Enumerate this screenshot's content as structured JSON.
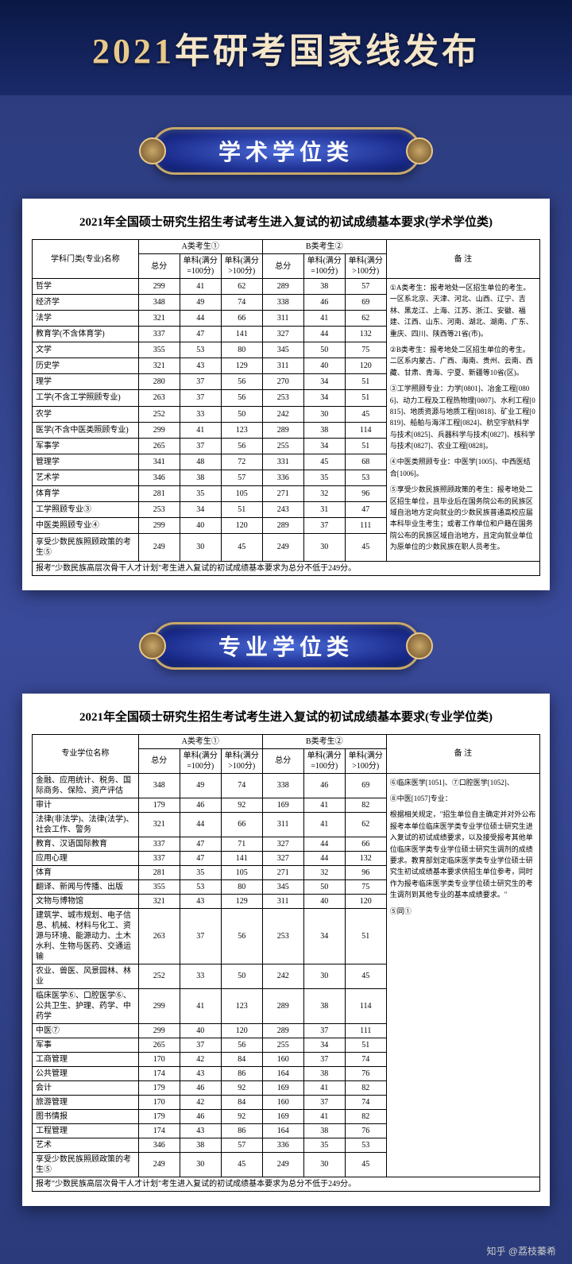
{
  "banner": {
    "year": "2021",
    "title_rest": "年研考国家线发布"
  },
  "sections": {
    "academic": {
      "badge": "学术学位类",
      "paper_title": "2021年全国硕士研究生招生考试考生进入复试的初试成绩基本要求(学术学位类)",
      "col_name_header": "学科门类(专业)名称",
      "group_a": "A类考生①",
      "group_b": "B类考生②",
      "notes_header": "备  注",
      "score_total": "总分",
      "score_100": "单科(满分=100分)",
      "score_gt100": "单科(满分>100分)",
      "rows": [
        {
          "name": "哲学",
          "a": [
            299,
            41,
            62
          ],
          "b": [
            289,
            38,
            57
          ]
        },
        {
          "name": "经济学",
          "a": [
            348,
            49,
            74
          ],
          "b": [
            338,
            46,
            69
          ]
        },
        {
          "name": "法学",
          "a": [
            321,
            44,
            66
          ],
          "b": [
            311,
            41,
            62
          ]
        },
        {
          "name": "教育学(不含体育学)",
          "a": [
            337,
            47,
            141
          ],
          "b": [
            327,
            44,
            132
          ]
        },
        {
          "name": "文学",
          "a": [
            355,
            53,
            80
          ],
          "b": [
            345,
            50,
            75
          ]
        },
        {
          "name": "历史学",
          "a": [
            321,
            43,
            129
          ],
          "b": [
            311,
            40,
            120
          ]
        },
        {
          "name": "理学",
          "a": [
            280,
            37,
            56
          ],
          "b": [
            270,
            34,
            51
          ]
        },
        {
          "name": "工学(不含工学照顾专业)",
          "a": [
            263,
            37,
            56
          ],
          "b": [
            253,
            34,
            51
          ]
        },
        {
          "name": "农学",
          "a": [
            252,
            33,
            50
          ],
          "b": [
            242,
            30,
            45
          ]
        },
        {
          "name": "医学(不含中医类照顾专业)",
          "a": [
            299,
            41,
            123
          ],
          "b": [
            289,
            38,
            114
          ]
        },
        {
          "name": "军事学",
          "a": [
            265,
            37,
            56
          ],
          "b": [
            255,
            34,
            51
          ]
        },
        {
          "name": "管理学",
          "a": [
            341,
            48,
            72
          ],
          "b": [
            331,
            45,
            68
          ]
        },
        {
          "name": "艺术学",
          "a": [
            346,
            38,
            57
          ],
          "b": [
            336,
            35,
            53
          ]
        },
        {
          "name": "体育学",
          "a": [
            281,
            35,
            105
          ],
          "b": [
            271,
            32,
            96
          ]
        },
        {
          "name": "工学照顾专业③",
          "a": [
            253,
            34,
            51
          ],
          "b": [
            243,
            31,
            47
          ]
        },
        {
          "name": "中医类照顾专业④",
          "a": [
            299,
            40,
            120
          ],
          "b": [
            289,
            37,
            111
          ]
        },
        {
          "name": "享受少数民族照顾政策的考生⑤",
          "a": [
            249,
            30,
            45
          ],
          "b": [
            249,
            30,
            45
          ]
        }
      ],
      "footnote": "报考\"少数民族高层次骨干人才计划\"考生进入复试的初试成绩基本要求为总分不低于249分。",
      "notes": [
        "①A类考生：报考地处一区招生单位的考生。一区系北京、天津、河北、山西、辽宁、吉林、黑龙江、上海、江苏、浙江、安徽、福建、江西、山东、河南、湖北、湖南、广东、重庆、四川、陕西等21省(市)。",
        "②B类考生：报考地处二区招生单位的考生。二区系内蒙古、广西、海南、贵州、云南、西藏、甘肃、青海、宁夏、新疆等10省(区)。",
        "③工学照顾专业：力学[0801]、冶金工程[0806]、动力工程及工程热物理[0807]、水利工程[0815]、地质资源与地质工程[0818]、矿业工程[0819]、船舶与海洋工程[0824]、航空宇航科学与技术[0825]、兵器科学与技术[0827]、核科学与技术[0827]、农业工程[0828]。",
        "④中医类照顾专业：中医学[1005]、中西医结合[1006]。",
        "⑤享受少数民族照顾政策的考生：报考地处二区招生单位，且毕业后在国务院公布的民族区域自治地方定向就业的少数民族普通高校应届本科毕业生考生；或者工作单位和户籍在国务院公布的民族区域自治地方，且定向就业单位为原单位的少数民族在职人员考生。"
      ]
    },
    "professional": {
      "badge": "专业学位类",
      "paper_title": "2021年全国硕士研究生招生考试考生进入复试的初试成绩基本要求(专业学位类)",
      "col_name_header": "专业学位名称",
      "group_a": "A类考生①",
      "group_b": "B类考生②",
      "notes_header": "备  注",
      "score_total": "总分",
      "score_100": "单科(满分=100分)",
      "score_gt100": "单科(满分>100分)",
      "rows": [
        {
          "name": "金融、应用统计、税务、国际商务、保险、资产评估",
          "a": [
            348,
            49,
            74
          ],
          "b": [
            338,
            46,
            69
          ]
        },
        {
          "name": "审计",
          "a": [
            179,
            46,
            92
          ],
          "b": [
            169,
            41,
            82
          ]
        },
        {
          "name": "法律(非法学)、法律(法学)、社会工作、警务",
          "a": [
            321,
            44,
            66
          ],
          "b": [
            311,
            41,
            62
          ]
        },
        {
          "name": "教育、汉语国际教育",
          "a": [
            337,
            47,
            71
          ],
          "b": [
            327,
            44,
            66
          ]
        },
        {
          "name": "应用心理",
          "a": [
            337,
            47,
            141
          ],
          "b": [
            327,
            44,
            132
          ]
        },
        {
          "name": "体育",
          "a": [
            281,
            35,
            105
          ],
          "b": [
            271,
            32,
            96
          ]
        },
        {
          "name": "翻译、新闻与传播、出版",
          "a": [
            355,
            53,
            80
          ],
          "b": [
            345,
            50,
            75
          ]
        },
        {
          "name": "文物与博物馆",
          "a": [
            321,
            43,
            129
          ],
          "b": [
            311,
            40,
            120
          ]
        },
        {
          "name": "建筑学、城市规划、电子信息、机械、材料与化工、资源与环境、能源动力、土木水利、生物与医药、交通运输",
          "a": [
            263,
            37,
            56
          ],
          "b": [
            253,
            34,
            51
          ]
        },
        {
          "name": "农业、兽医、风景园林、林业",
          "a": [
            252,
            33,
            50
          ],
          "b": [
            242,
            30,
            45
          ]
        },
        {
          "name": "临床医学⑥、口腔医学⑥、公共卫生、护理、药学、中药学",
          "a": [
            299,
            41,
            123
          ],
          "b": [
            289,
            38,
            114
          ]
        },
        {
          "name": "中医⑦",
          "a": [
            299,
            40,
            120
          ],
          "b": [
            289,
            37,
            111
          ]
        },
        {
          "name": "军事",
          "a": [
            265,
            37,
            56
          ],
          "b": [
            255,
            34,
            51
          ]
        },
        {
          "name": "工商管理",
          "a": [
            170,
            42,
            84
          ],
          "b": [
            160,
            37,
            74
          ]
        },
        {
          "name": "公共管理",
          "a": [
            174,
            43,
            86
          ],
          "b": [
            164,
            38,
            76
          ]
        },
        {
          "name": "会计",
          "a": [
            179,
            46,
            92
          ],
          "b": [
            169,
            41,
            82
          ]
        },
        {
          "name": "旅游管理",
          "a": [
            170,
            42,
            84
          ],
          "b": [
            160,
            37,
            74
          ]
        },
        {
          "name": "图书情报",
          "a": [
            179,
            46,
            92
          ],
          "b": [
            169,
            41,
            82
          ]
        },
        {
          "name": "工程管理",
          "a": [
            174,
            43,
            86
          ],
          "b": [
            164,
            38,
            76
          ]
        },
        {
          "name": "艺术",
          "a": [
            346,
            38,
            57
          ],
          "b": [
            336,
            35,
            53
          ]
        },
        {
          "name": "享受少数民族照顾政策的考生⑤",
          "a": [
            249,
            30,
            45
          ],
          "b": [
            249,
            30,
            45
          ]
        }
      ],
      "footnote": "报考\"少数民族高层次骨干人才计划\"考生进入复试的初试成绩基本要求为总分不低于249分。",
      "notes": [
        "⑥临床医学[1051]、⑦口腔医学[1052]、",
        "⑧中医[1057]专业：",
        "根据相关规定，\"招生单位自主确定并对外公布报考本单位临床医学类专业学位硕士研究生进入复试的初试成绩要求，以及接受报考其他单位临床医学类专业学位硕士研究生调剂的成绩要求。教育部划定临床医学类专业学位硕士研究生初试成绩基本要求供招生单位参考，同时作为报考临床医学类专业学位硕士研究生的考生调剂到其他专业的基本成绩要求。\"",
        "⑤同①"
      ]
    }
  },
  "footer_credit": "知乎 @荔枝蓁希"
}
